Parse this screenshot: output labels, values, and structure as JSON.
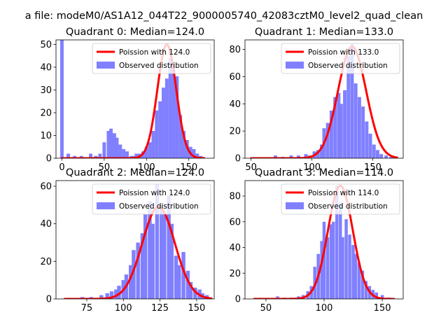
{
  "figure": {
    "suptitle": "a file: modeM0/AS1A12_044T22_9000005740_42083cztM0_level2_quad_clean",
    "bar_color": "#8080ff",
    "line_color": "#ff0000"
  },
  "chart_data": [
    {
      "type": "bar",
      "title": "Quadrant 0: Median=124.0",
      "xlim": [
        -7,
        180
      ],
      "ylim": [
        0,
        52
      ],
      "xticks": [
        0,
        50,
        100,
        150
      ],
      "yticks": [
        0,
        10,
        20,
        30,
        40,
        50
      ],
      "bin_width": 4.06,
      "series": [
        {
          "name": "Observed distribution",
          "x": [
            0,
            7.5,
            15,
            23,
            34,
            40,
            45,
            50,
            55,
            58,
            62,
            65,
            69,
            73,
            77,
            82,
            85,
            88,
            92,
            96,
            100,
            104,
            108,
            112,
            116,
            120,
            124,
            128,
            132,
            136,
            140,
            144,
            148,
            152,
            156,
            160,
            164
          ],
          "values": [
            52,
            2,
            1,
            1,
            2,
            1,
            2,
            7,
            12,
            13,
            11,
            9,
            6,
            4,
            3,
            1,
            1,
            2,
            2,
            3,
            5,
            7,
            12,
            21,
            25,
            31,
            35,
            44,
            40,
            36,
            19,
            12,
            8,
            5,
            4,
            2,
            1
          ]
        },
        {
          "name": "Poission with 124.0",
          "mean": 124.0,
          "peak": 50,
          "x_range": [
            0,
            168
          ]
        }
      ]
    },
    {
      "type": "bar",
      "title": "Quadrant 1: Median=133.0",
      "xlim": [
        45,
        175
      ],
      "ylim": [
        0,
        87
      ],
      "xticks": [
        50,
        100,
        150
      ],
      "yticks": [
        0,
        20,
        40,
        60,
        80
      ],
      "bin_width": 2.85,
      "series": [
        {
          "name": "Observed distribution",
          "x": [
            70,
            76,
            83,
            89,
            95,
            98,
            102,
            105,
            108,
            110,
            113,
            116,
            119,
            122,
            124,
            127,
            130,
            133,
            136,
            139,
            142,
            145,
            148,
            151,
            154,
            157,
            161,
            165
          ],
          "values": [
            2,
            1,
            2,
            2,
            3,
            2,
            5,
            6,
            10,
            22,
            26,
            35,
            45,
            48,
            40,
            50,
            75,
            84,
            55,
            45,
            38,
            27,
            18,
            10,
            6,
            3,
            2,
            1
          ]
        },
        {
          "name": "Poission with 133.0",
          "mean": 133.0,
          "peak": 82,
          "x_range": [
            50,
            170
          ]
        }
      ]
    },
    {
      "type": "bar",
      "title": "Quadrant 2: Median=124.0",
      "xlim": [
        54,
        162
      ],
      "ylim": [
        0,
        63
      ],
      "xticks": [
        75,
        100,
        125,
        150
      ],
      "yticks": [
        0,
        20,
        40,
        60
      ],
      "bin_width": 2.6,
      "series": [
        {
          "name": "Observed distribution",
          "x": [
            72,
            78,
            85,
            89,
            92,
            95,
            97,
            100,
            102,
            105,
            107,
            110,
            113,
            115,
            118,
            120,
            123,
            126,
            128,
            131,
            133,
            136,
            138,
            141,
            144,
            146,
            149,
            152,
            154,
            157
          ],
          "values": [
            1,
            1,
            2,
            3,
            4,
            5,
            7,
            10,
            13,
            18,
            26,
            30,
            35,
            45,
            52,
            40,
            61,
            50,
            45,
            55,
            40,
            23,
            18,
            25,
            15,
            9,
            6,
            5,
            3,
            2
          ]
        },
        {
          "name": "Poission with 124.0",
          "mean": 124.0,
          "peak": 49,
          "x_range": [
            60,
            160
          ]
        }
      ]
    },
    {
      "type": "bar",
      "title": "Quadrant 3: Median=114.0",
      "xlim": [
        32,
        168
      ],
      "ylim": [
        0,
        92
      ],
      "xticks": [
        50,
        100,
        150
      ],
      "yticks": [
        0,
        20,
        40,
        60,
        80
      ],
      "bin_width": 2.7,
      "series": [
        {
          "name": "Observed distribution",
          "x": [
            60,
            66,
            72,
            78,
            82,
            86,
            89,
            92,
            95,
            98,
            100,
            103,
            106,
            108,
            111,
            114,
            116,
            119,
            122,
            125,
            127,
            130,
            133,
            136,
            139,
            142,
            145,
            150,
            156
          ],
          "values": [
            2,
            1,
            1,
            2,
            3,
            6,
            10,
            25,
            35,
            45,
            60,
            48,
            58,
            60,
            88,
            75,
            48,
            62,
            50,
            42,
            35,
            28,
            22,
            14,
            10,
            7,
            5,
            3,
            1
          ]
        },
        {
          "name": "Poission with 114.0",
          "mean": 114.0,
          "peak": 88,
          "x_range": [
            40,
            160
          ]
        }
      ]
    }
  ]
}
